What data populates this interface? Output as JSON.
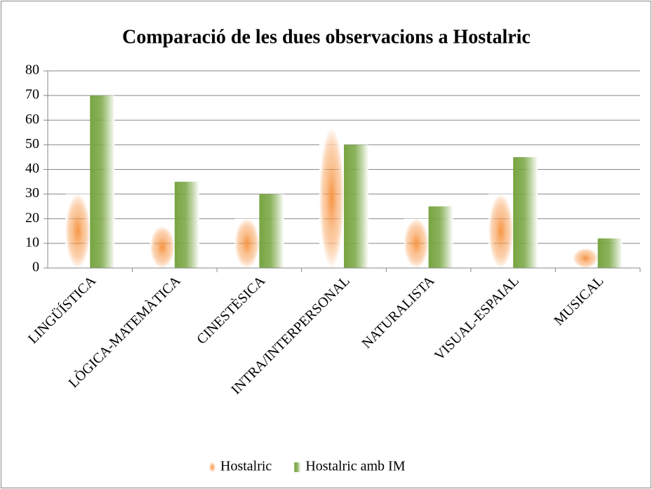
{
  "chart_data": {
    "type": "bar",
    "title": "Comparació de les dues observacions a Hostalric",
    "categories": [
      "LINGÜÍSTICA",
      "LÒGICA-MATEMÀTICA",
      "CINESTÈSICA",
      "INTRA/INTERPERSONAL",
      "NATURALISTA",
      "VISUAL-ESPAIAL",
      "MUSICAL"
    ],
    "series": [
      {
        "name": "Hostalric",
        "color": "#f79646",
        "values": [
          30,
          17,
          20,
          57,
          20,
          30,
          8
        ]
      },
      {
        "name": "Hostalric amb IM",
        "color": "#77a541",
        "values": [
          70,
          35,
          30,
          50,
          25,
          45,
          12
        ]
      }
    ],
    "ylim": [
      0,
      80
    ],
    "yticks": [
      0,
      10,
      20,
      30,
      40,
      50,
      60,
      70,
      80
    ],
    "grid": true,
    "legend": "bottom"
  }
}
